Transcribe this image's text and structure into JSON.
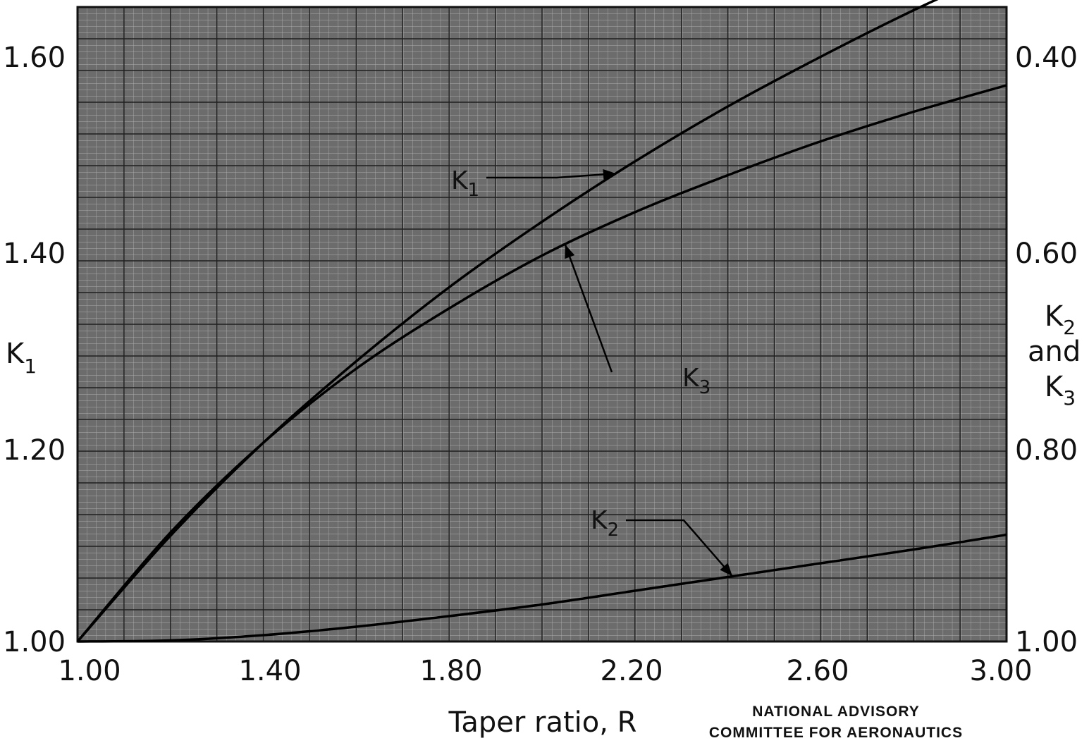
{
  "chart_data": {
    "type": "line",
    "x": [
      1.0,
      1.2,
      1.4,
      1.6,
      1.8,
      2.0,
      2.2,
      2.4,
      2.6,
      2.8,
      3.0
    ],
    "xlabel": "Taper ratio, R",
    "xlim": [
      1.0,
      3.0
    ],
    "xticks": [
      "1.00",
      "1.40",
      "1.80",
      "2.20",
      "2.60",
      "3.00"
    ],
    "y_left": {
      "label_main": "K",
      "label_sub": "1",
      "lim": [
        1.0,
        1.6
      ],
      "ticks": [
        "1.00",
        "1.20",
        "1.40",
        "1.60"
      ]
    },
    "y_right": {
      "label_line1_main": "K",
      "label_line1_sub": "2",
      "label_line2": "and",
      "label_line3_main": "K",
      "label_line3_sub": "3",
      "lim": [
        1.0,
        0.4
      ],
      "ticks": [
        "1.00",
        "0.80",
        "0.60",
        "0.40"
      ]
    },
    "grid": true,
    "series": [
      {
        "name": "K1",
        "axis": "left",
        "values": [
          1.0,
          1.1,
          1.188,
          1.265,
          1.335,
          1.397,
          1.454,
          1.506,
          1.553,
          1.597,
          1.637
        ]
      },
      {
        "name": "K3",
        "axis": "right",
        "values": [
          1.0,
          0.897,
          0.812,
          0.742,
          0.685,
          0.635,
          0.594,
          0.559,
          0.527,
          0.499,
          0.474
        ]
      },
      {
        "name": "K2",
        "axis": "right",
        "values": [
          1.0,
          0.999,
          0.994,
          0.986,
          0.976,
          0.965,
          0.952,
          0.939,
          0.926,
          0.913,
          0.899
        ]
      }
    ],
    "annotations": [
      {
        "label_main": "K",
        "label_sub": "1",
        "points_to": "K1"
      },
      {
        "label_main": "K",
        "label_sub": "3",
        "points_to": "K3"
      },
      {
        "label_main": "K",
        "label_sub": "2",
        "points_to": "K2"
      }
    ]
  },
  "credit": {
    "line1": "NATIONAL ADVISORY",
    "line2": "COMMITTEE FOR AERONAUTICS"
  }
}
